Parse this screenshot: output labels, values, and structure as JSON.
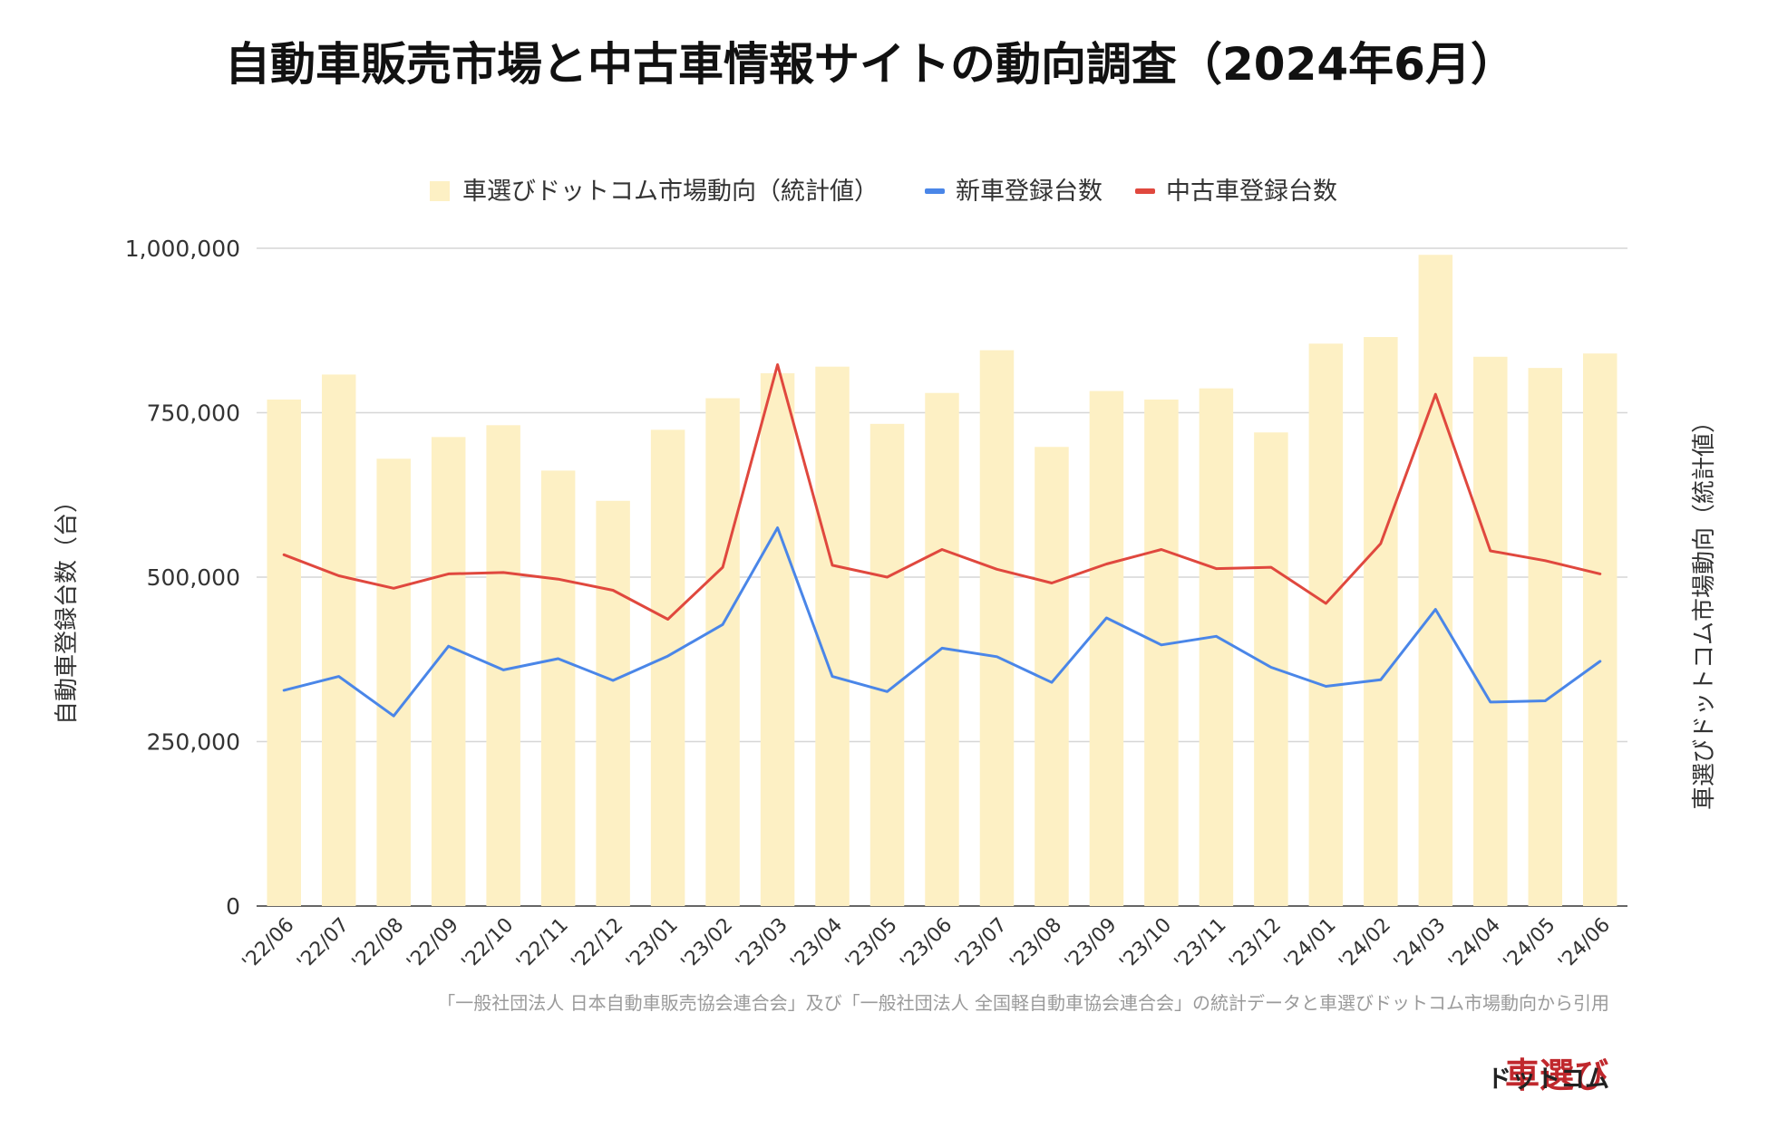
{
  "title": "自動車販売市場と中古車情報サイトの動向調査（2024年6月）",
  "legend": [
    {
      "label": "車選びドットコム市場動向（統計値）",
      "color": "#fdf0c4",
      "kind": "bar"
    },
    {
      "label": "新車登録台数",
      "color": "#4a86e8",
      "kind": "line"
    },
    {
      "label": "中古車登録台数",
      "color": "#e0483e",
      "kind": "line"
    }
  ],
  "source_note": "「一般社団法人 日本自動車販売協会連合会」及び「一般社団法人 全国軽自動車協会連合会」の統計データと車選びドットコム市場動向から引用",
  "brand": {
    "main": "車選び",
    "sub": "ドットコム"
  },
  "chart_data": {
    "type": "bar",
    "title": "自動車販売市場と中古車情報サイトの動向調査（2024年6月）",
    "categories": [
      "'22/06",
      "'22/07",
      "'22/08",
      "'22/09",
      "'22/10",
      "'22/11",
      "'22/12",
      "'23/01",
      "'23/02",
      "'23/03",
      "'23/04",
      "'23/05",
      "'23/06",
      "'23/07",
      "'23/08",
      "'23/09",
      "'23/10",
      "'23/11",
      "'23/12",
      "'24/01",
      "'24/02",
      "'24/03",
      "'24/04",
      "'24/05",
      "'24/06"
    ],
    "ylabel": "自動車登録台数（台）",
    "y2label": "車選びドットコム市場動向（統計値）",
    "ylim": [
      0,
      1000000
    ],
    "yticks": [
      0,
      250000,
      500000,
      750000,
      1000000
    ],
    "ytick_labels": [
      "0",
      "250,000",
      "500,000",
      "750,000",
      "1,000,000"
    ],
    "grid": true,
    "legend_position": "top-center",
    "series": [
      {
        "name": "車選びドットコム市場動向（統計値）",
        "type": "bar",
        "color": "#fdf0c4",
        "values": [
          770000,
          808000,
          680000,
          713000,
          731000,
          662000,
          616000,
          724000,
          772000,
          810000,
          820000,
          733000,
          780000,
          845000,
          698000,
          783000,
          770000,
          787000,
          720000,
          855000,
          865000,
          990000,
          835000,
          818000,
          840000
        ]
      },
      {
        "name": "新車登録台数",
        "type": "line",
        "color": "#4a86e8",
        "values": [
          328000,
          349000,
          289000,
          395000,
          359000,
          376000,
          343000,
          380000,
          428000,
          575000,
          349000,
          326000,
          392000,
          379000,
          340000,
          438000,
          397000,
          410000,
          363000,
          334000,
          344000,
          451000,
          310000,
          312000,
          372000
        ]
      },
      {
        "name": "中古車登録台数",
        "type": "line",
        "color": "#e0483e",
        "values": [
          534000,
          502000,
          483000,
          505000,
          507000,
          497000,
          480000,
          436000,
          515000,
          823000,
          518000,
          500000,
          542000,
          512000,
          491000,
          520000,
          542000,
          513000,
          515000,
          460000,
          551000,
          778000,
          540000,
          525000,
          505000
        ]
      }
    ]
  }
}
